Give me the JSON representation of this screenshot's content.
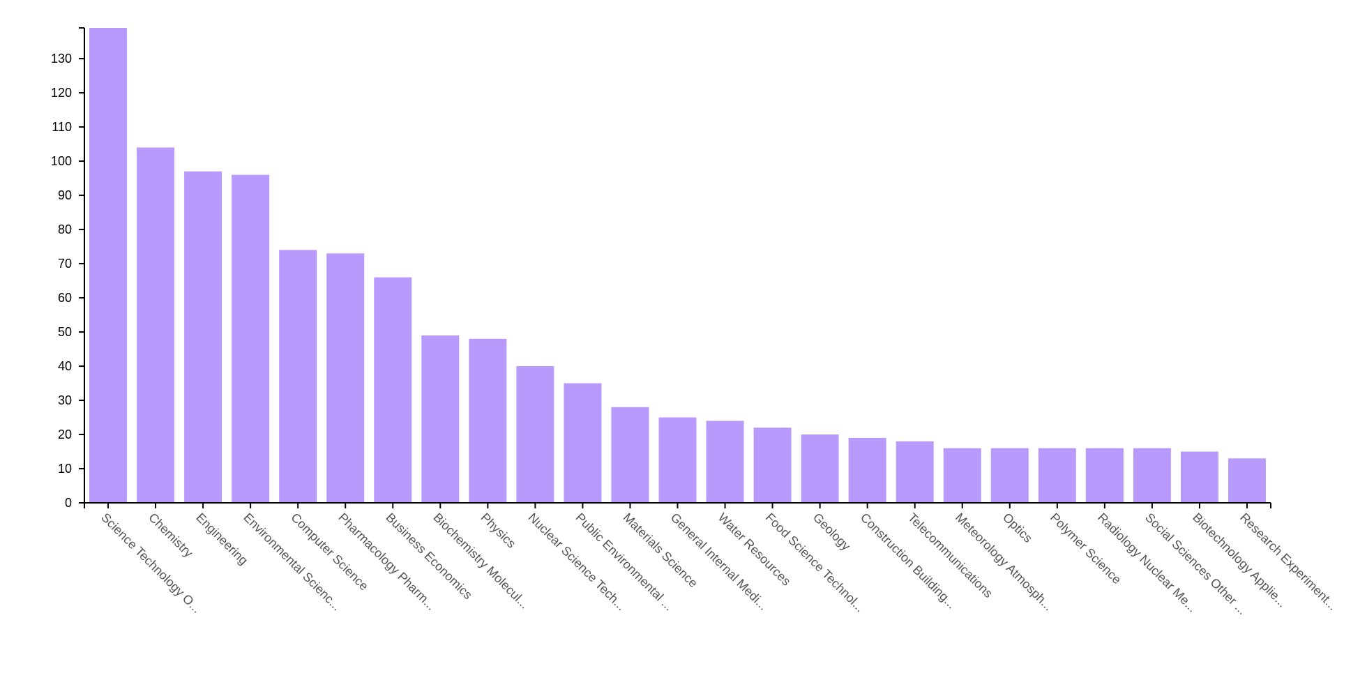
{
  "chart_data": {
    "type": "bar",
    "title": "",
    "xlabel": "",
    "ylabel": "",
    "ylim": [
      0,
      139
    ],
    "yticks": [
      0,
      10,
      20,
      30,
      40,
      50,
      60,
      70,
      80,
      90,
      100,
      110,
      120,
      130
    ],
    "grid": false,
    "legend": "none",
    "bar_color": "#b899fc",
    "categories": [
      "Science Technology O...",
      "Chemistry",
      "Engineering",
      "Environmental Scienc...",
      "Computer Science",
      "Pharmacology Pharm...",
      "Business Economics",
      "Biochemistry Molecul...",
      "Physics",
      "Nuclear Science Tech...",
      "Public Environmental ...",
      "Materials Science",
      "General Internal Medi...",
      "Water Resources",
      "Food Science Technol...",
      "Geology",
      "Construction Building...",
      "Telecommunications",
      "Meteorology Atmosph...",
      "Optics",
      "Polymer Science",
      "Radiology Nuclear Me...",
      "Social Sciences Other ...",
      "Biotechnology Applie...",
      "Research Experiment..."
    ],
    "values": [
      139,
      104,
      97,
      96,
      74,
      73,
      66,
      49,
      48,
      40,
      35,
      28,
      25,
      24,
      22,
      20,
      19,
      18,
      16,
      16,
      16,
      16,
      16,
      15,
      13
    ]
  }
}
